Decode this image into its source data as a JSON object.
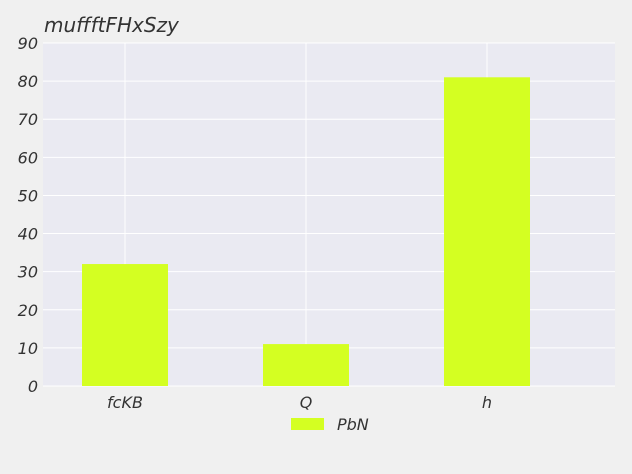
{
  "chart_data": {
    "type": "bar",
    "title": "muffftFHxSzy",
    "xlabel": "",
    "ylabel": "",
    "categories": [
      "fcKB",
      "Q",
      "h"
    ],
    "series": [
      {
        "name": "PbN",
        "values": [
          32,
          11,
          81
        ],
        "color": "#d4ff22"
      }
    ],
    "ylim": [
      0,
      90
    ],
    "yticks": [
      0,
      10,
      20,
      30,
      40,
      50,
      60,
      70,
      80,
      90
    ],
    "grid": true,
    "legend": "bottom-center",
    "plot_background": "#eaeaf2",
    "grid_color": "#ffffff"
  }
}
